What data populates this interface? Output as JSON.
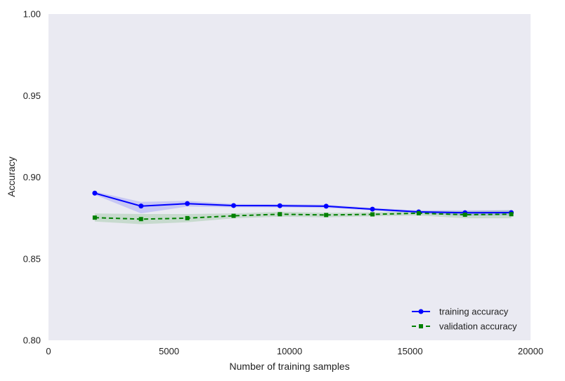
{
  "chart_data": {
    "type": "line",
    "title": "",
    "xlabel": "Number of training samples",
    "ylabel": "Accuracy",
    "xlim": [
      0,
      20000
    ],
    "ylim": [
      0.8,
      1.0
    ],
    "xticks": [
      0,
      5000,
      10000,
      15000,
      20000
    ],
    "yticks": [
      0.8,
      0.85,
      0.9,
      0.95,
      1.0
    ],
    "xtick_labels": [
      "0",
      "5000",
      "10000",
      "15000",
      "20000"
    ],
    "ytick_labels": [
      "0.80",
      "0.85",
      "0.90",
      "0.95",
      "1.00"
    ],
    "grid": false,
    "legend_position": "lower-right",
    "plot_background": "#EAEAF2",
    "x": [
      1920,
      3840,
      5760,
      7680,
      9600,
      11520,
      13440,
      15360,
      17280,
      19200
    ],
    "series": [
      {
        "name": "training accuracy",
        "color": "#0000FF",
        "marker": "circle",
        "line_style": "solid",
        "values": [
          0.8902,
          0.8823,
          0.8838,
          0.8826,
          0.8825,
          0.8822,
          0.8804,
          0.8787,
          0.8782,
          0.8783
        ],
        "band_lower": [
          0.8892,
          0.8778,
          0.882,
          0.8815,
          0.8815,
          0.8812,
          0.8796,
          0.8778,
          0.8764,
          0.8766
        ],
        "band_upper": [
          0.8912,
          0.8848,
          0.8855,
          0.8836,
          0.8835,
          0.8832,
          0.8812,
          0.8796,
          0.8797,
          0.8798
        ]
      },
      {
        "name": "validation accuracy",
        "color": "#008000",
        "marker": "square",
        "line_style": "dashed",
        "values": [
          0.8752,
          0.8743,
          0.8749,
          0.8763,
          0.8773,
          0.8768,
          0.8772,
          0.8779,
          0.877,
          0.8773
        ],
        "band_lower": [
          0.8728,
          0.8712,
          0.8724,
          0.8748,
          0.8758,
          0.8754,
          0.876,
          0.8765,
          0.8748,
          0.8748
        ],
        "band_upper": [
          0.8777,
          0.8774,
          0.8774,
          0.8778,
          0.8788,
          0.8782,
          0.8784,
          0.8793,
          0.8792,
          0.8798
        ]
      }
    ]
  }
}
